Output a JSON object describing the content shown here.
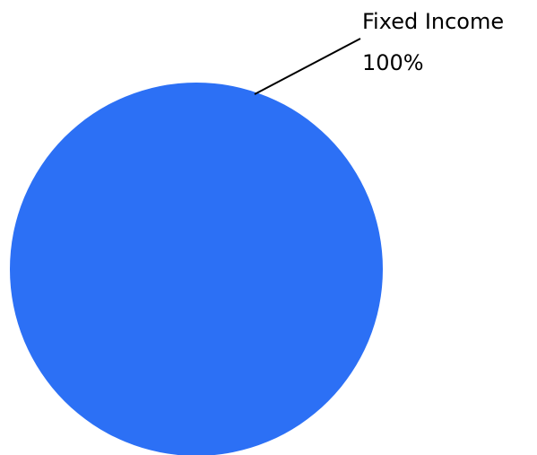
{
  "chart_data": {
    "type": "pie",
    "title": "",
    "slices": [
      {
        "label": "Fixed Income",
        "value": 100,
        "percent_label": "100%",
        "color": "#2c70f5"
      }
    ],
    "legend": "none",
    "label_style": "outside labels with leader line"
  }
}
